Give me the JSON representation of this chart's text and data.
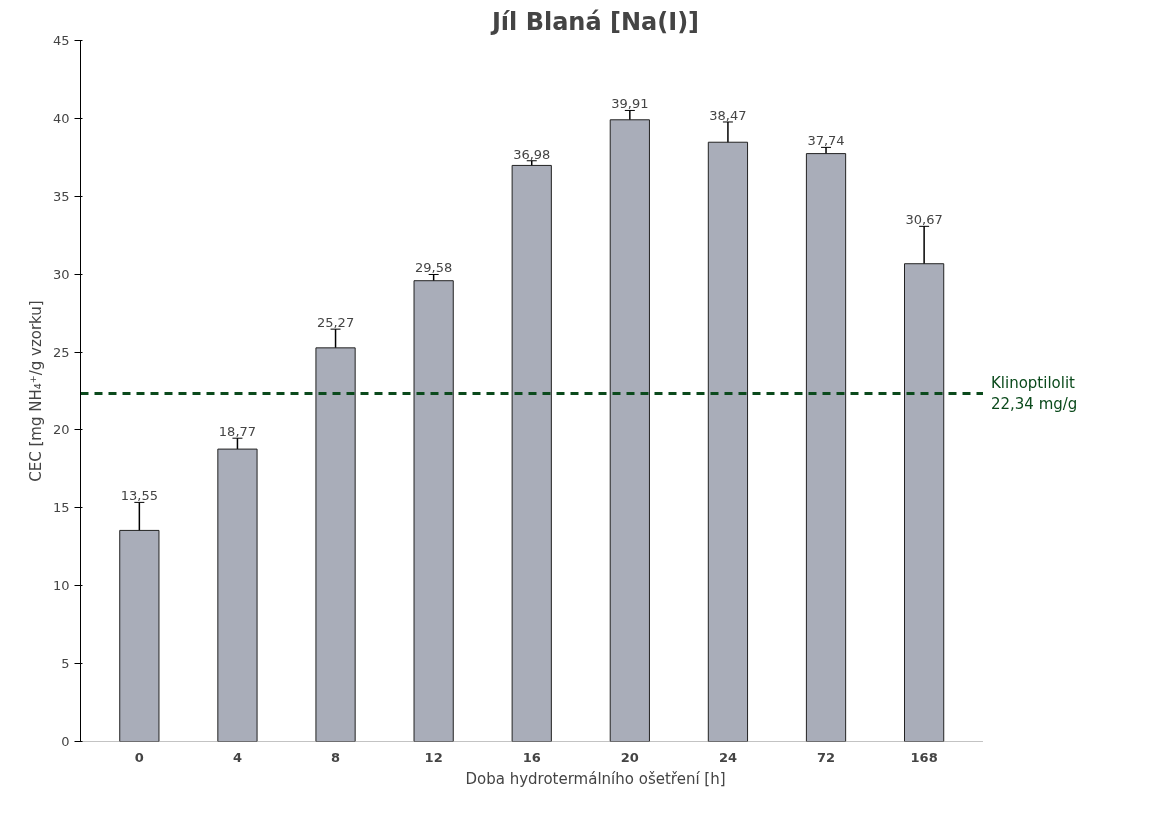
{
  "chart_data": {
    "type": "bar",
    "title": "Jíl Blaná [Na(I)]",
    "xlabel": "Doba hydrotermálního ošetření [h]",
    "ylabel": "CEC [mg NH₄⁺/g vzorku]",
    "categories": [
      "0",
      "4",
      "8",
      "12",
      "16",
      "20",
      "24",
      "72",
      "168"
    ],
    "values": [
      13.55,
      18.77,
      25.27,
      29.58,
      36.98,
      39.91,
      38.47,
      37.74,
      30.67
    ],
    "value_labels": [
      "13,55",
      "18,77",
      "25,27",
      "29,58",
      "36,98",
      "39,91",
      "38,47",
      "37,74",
      "30,67"
    ],
    "errors": [
      1.8,
      0.7,
      1.2,
      0.4,
      0.3,
      0.6,
      1.3,
      0.4,
      2.4
    ],
    "color": "#a9adb9",
    "ylim": [
      0,
      45
    ],
    "yticks": [
      0,
      5,
      10,
      15,
      20,
      25,
      30,
      35,
      40,
      45
    ],
    "grid": false,
    "ref_lines": [
      {
        "axis": "y",
        "value": 22.34,
        "label": "Klinoptilolit\n22,34 mg/g",
        "color": "#0b4a1c",
        "line_style": "dashed"
      }
    ]
  }
}
